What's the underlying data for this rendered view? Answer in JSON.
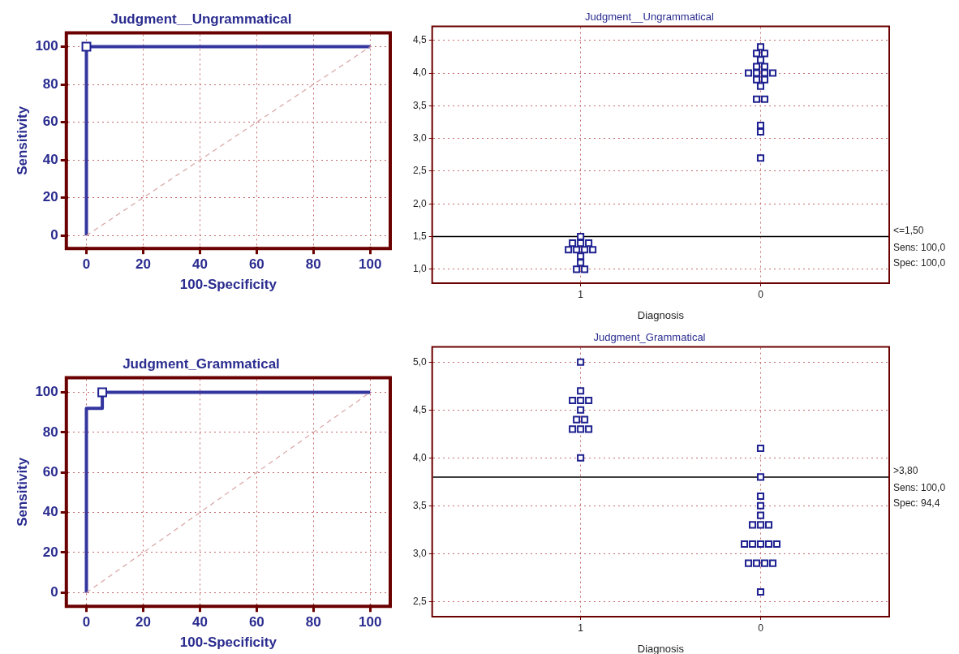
{
  "chart_data": [
    {
      "type": "line",
      "title": "Judgment__Ungrammatical",
      "xlabel": "100-Specificity",
      "ylabel": "Sensitivity",
      "xlim": [
        -6.5,
        106.5
      ],
      "ylim": [
        -6,
        106.5
      ],
      "xticks": [
        0,
        20,
        40,
        60,
        80,
        100
      ],
      "yticks": [
        0,
        20,
        40,
        60,
        80,
        100
      ],
      "grid": true,
      "series": [
        {
          "x": [
            0,
            0,
            100
          ],
          "values": [
            0,
            100,
            100
          ],
          "color": "#3436a0",
          "marker": "none"
        },
        {
          "x": [
            0,
            100
          ],
          "values": [
            0,
            100
          ],
          "color": "#d9a3a3",
          "line_style": "dashed",
          "marker": "none"
        },
        {
          "type": "scatter",
          "x": [
            0
          ],
          "values": [
            100
          ],
          "color": "#1f2290",
          "marker": "square"
        }
      ]
    },
    {
      "type": "scatter",
      "title": "Judgment__Ungrammatical",
      "xlabel": "Diagnosis",
      "categories": [
        "1",
        "0"
      ],
      "ylim": [
        0.8,
        4.7
      ],
      "yticks": [
        {
          "value": 1,
          "label": "1,0"
        },
        {
          "value": 1.5,
          "label": "1,5"
        },
        {
          "value": 2,
          "label": "2,0"
        },
        {
          "value": 2.5,
          "label": "2,5"
        },
        {
          "value": 3,
          "label": "3,0"
        },
        {
          "value": 3.5,
          "label": "3,5"
        },
        {
          "value": 4,
          "label": "4,0"
        },
        {
          "value": 4.5,
          "label": "4,5"
        }
      ],
      "grid": true,
      "marker": "square",
      "ref_lines": [
        {
          "axis": "y",
          "value": 1.5,
          "label": "<=1,50",
          "color": "#000000"
        }
      ],
      "annotations": [
        "Sens: 100,0",
        "Spec: 100,0"
      ],
      "series": [
        {
          "color": "#1f2290",
          "x": [
            "1",
            "1",
            "1",
            "1",
            "1",
            "1",
            "1",
            "1",
            "1",
            "1",
            "1",
            "1",
            "0",
            "0",
            "0",
            "0",
            "0",
            "0",
            "0",
            "0",
            "0",
            "0",
            "0",
            "0",
            "0",
            "0",
            "0",
            "0",
            "0",
            "0"
          ],
          "values": [
            1.5,
            1.4,
            1.4,
            1.4,
            1.3,
            1.3,
            1.3,
            1.3,
            1.2,
            1.1,
            1.0,
            1.0,
            4.4,
            4.3,
            4.3,
            4.2,
            4.1,
            4.1,
            4.0,
            4.0,
            4.0,
            4.0,
            3.9,
            3.9,
            3.8,
            3.6,
            3.6,
            3.2,
            3.1,
            2.7
          ]
        }
      ]
    },
    {
      "type": "line",
      "title": "Judgment_Grammatical",
      "xlabel": "100-Specificity",
      "ylabel": "Sensitivity",
      "xlim": [
        -6.5,
        106.5
      ],
      "ylim": [
        -6,
        106.5
      ],
      "xticks": [
        0,
        20,
        40,
        60,
        80,
        100
      ],
      "yticks": [
        0,
        20,
        40,
        60,
        80,
        100
      ],
      "grid": true,
      "series": [
        {
          "x": [
            0,
            0,
            5.6,
            5.6,
            100
          ],
          "values": [
            0,
            92,
            92,
            100,
            100
          ],
          "color": "#3436a0",
          "marker": "none"
        },
        {
          "x": [
            0,
            100
          ],
          "values": [
            0,
            100
          ],
          "color": "#d9a3a3",
          "line_style": "dashed",
          "marker": "none"
        },
        {
          "type": "scatter",
          "x": [
            5.6
          ],
          "values": [
            100
          ],
          "color": "#1f2290",
          "marker": "square"
        }
      ]
    },
    {
      "type": "scatter",
      "title": "Judgment_Grammatical",
      "xlabel": "Diagnosis",
      "categories": [
        "1",
        "0"
      ],
      "ylim": [
        2.35,
        5.15
      ],
      "yticks": [
        {
          "value": 2.5,
          "label": "2,5"
        },
        {
          "value": 3,
          "label": "3,0"
        },
        {
          "value": 3.5,
          "label": "3,5"
        },
        {
          "value": 4,
          "label": "4,0"
        },
        {
          "value": 4.5,
          "label": "4,5"
        },
        {
          "value": 5,
          "label": "5,0"
        }
      ],
      "grid": true,
      "marker": "square",
      "ref_lines": [
        {
          "axis": "y",
          "value": 3.8,
          "label": ">3,80",
          "color": "#000000"
        }
      ],
      "annotations": [
        "Sens: 100,0",
        "Spec: 94,4"
      ],
      "series": [
        {
          "color": "#1f2290",
          "x": [
            "1",
            "1",
            "1",
            "1",
            "1",
            "1",
            "1",
            "1",
            "1",
            "1",
            "1",
            "1",
            "0",
            "0",
            "0",
            "0",
            "0",
            "0",
            "0",
            "0",
            "0",
            "0",
            "0",
            "0",
            "0",
            "0",
            "0",
            "0",
            "0",
            "0"
          ],
          "values": [
            5.0,
            4.7,
            4.6,
            4.6,
            4.6,
            4.5,
            4.4,
            4.4,
            4.3,
            4.3,
            4.3,
            4.0,
            4.1,
            3.8,
            3.6,
            3.5,
            3.4,
            3.3,
            3.3,
            3.3,
            3.1,
            3.1,
            3.1,
            3.1,
            3.1,
            2.9,
            2.9,
            2.9,
            2.9,
            2.6
          ]
        }
      ]
    }
  ]
}
